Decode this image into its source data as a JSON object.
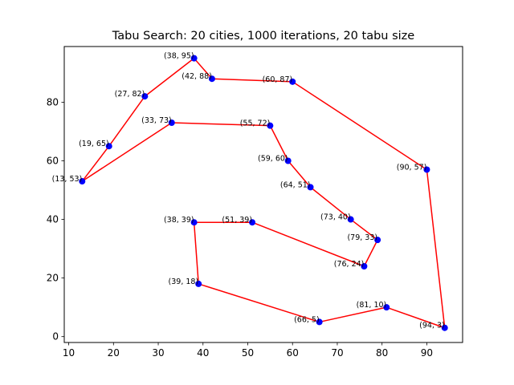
{
  "chart_data": {
    "type": "line",
    "title": "Tabu Search: 20 cities, 1000 iterations, 20 tabu size",
    "xlabel": "",
    "ylabel": "",
    "xlim": [
      9,
      98
    ],
    "ylim": [
      -2,
      99
    ],
    "xticks": [
      10,
      20,
      30,
      40,
      50,
      60,
      70,
      80,
      90
    ],
    "yticks": [
      0,
      20,
      40,
      60,
      80
    ],
    "grid": false,
    "line_color": "#ff0000",
    "marker_color": "#0000ff",
    "points": [
      {
        "x": 13,
        "y": 53,
        "label": "(13, 53)"
      },
      {
        "x": 19,
        "y": 65,
        "label": "(19, 65)"
      },
      {
        "x": 27,
        "y": 82,
        "label": "(27, 82)"
      },
      {
        "x": 38,
        "y": 95,
        "label": "(38, 95)"
      },
      {
        "x": 42,
        "y": 88,
        "label": "(42, 88)"
      },
      {
        "x": 60,
        "y": 87,
        "label": "(60, 87)"
      },
      {
        "x": 90,
        "y": 57,
        "label": "(90, 57)"
      },
      {
        "x": 94,
        "y": 3,
        "label": "(94, 3)"
      },
      {
        "x": 81,
        "y": 10,
        "label": "(81, 10)"
      },
      {
        "x": 66,
        "y": 5,
        "label": "(66, 5)"
      },
      {
        "x": 39,
        "y": 18,
        "label": "(39, 18)"
      },
      {
        "x": 38,
        "y": 39,
        "label": "(38, 39)"
      },
      {
        "x": 51,
        "y": 39,
        "label": "(51, 39)"
      },
      {
        "x": 76,
        "y": 24,
        "label": "(76, 24)"
      },
      {
        "x": 79,
        "y": 33,
        "label": "(79, 33)"
      },
      {
        "x": 73,
        "y": 40,
        "label": "(73, 40)"
      },
      {
        "x": 64,
        "y": 51,
        "label": "(64, 51)"
      },
      {
        "x": 59,
        "y": 60,
        "label": "(59, 60)"
      },
      {
        "x": 55,
        "y": 72,
        "label": "(55, 72)"
      },
      {
        "x": 33,
        "y": 73,
        "label": "(33, 73)"
      }
    ]
  }
}
